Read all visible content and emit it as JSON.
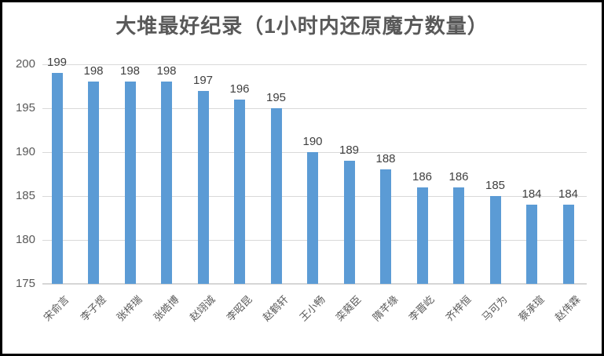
{
  "chart_data": {
    "type": "bar",
    "title": "大堆最好纪录（1小时内还原魔方数量）",
    "categories": [
      "宋俞言",
      "李子煜",
      "张梓瑞",
      "张皓博",
      "赵翊诚",
      "李昭昆",
      "赵鹤轩",
      "王小畅",
      "栾蕤臣",
      "隋芊缘",
      "李晋屹",
      "齐梓恒",
      "马可为",
      "蔡承瑄",
      "赵伟霖"
    ],
    "values": [
      199,
      198,
      198,
      198,
      197,
      196,
      195,
      190,
      189,
      188,
      186,
      186,
      185,
      184,
      184
    ],
    "xlabel": "",
    "ylabel": "",
    "ylim": [
      175,
      200
    ],
    "yticks": [
      175,
      180,
      185,
      190,
      195,
      200
    ],
    "grid": true,
    "legend": false,
    "data_labels": true,
    "colors": {
      "bar": "#5B9BD5",
      "gridline": "#D9D9D9",
      "axis_line": "#D6D6D6",
      "title": "#595959",
      "tick_label": "#595959",
      "data_label": "#404040",
      "frame_border": "#000000",
      "background": "#FFFFFF"
    }
  }
}
